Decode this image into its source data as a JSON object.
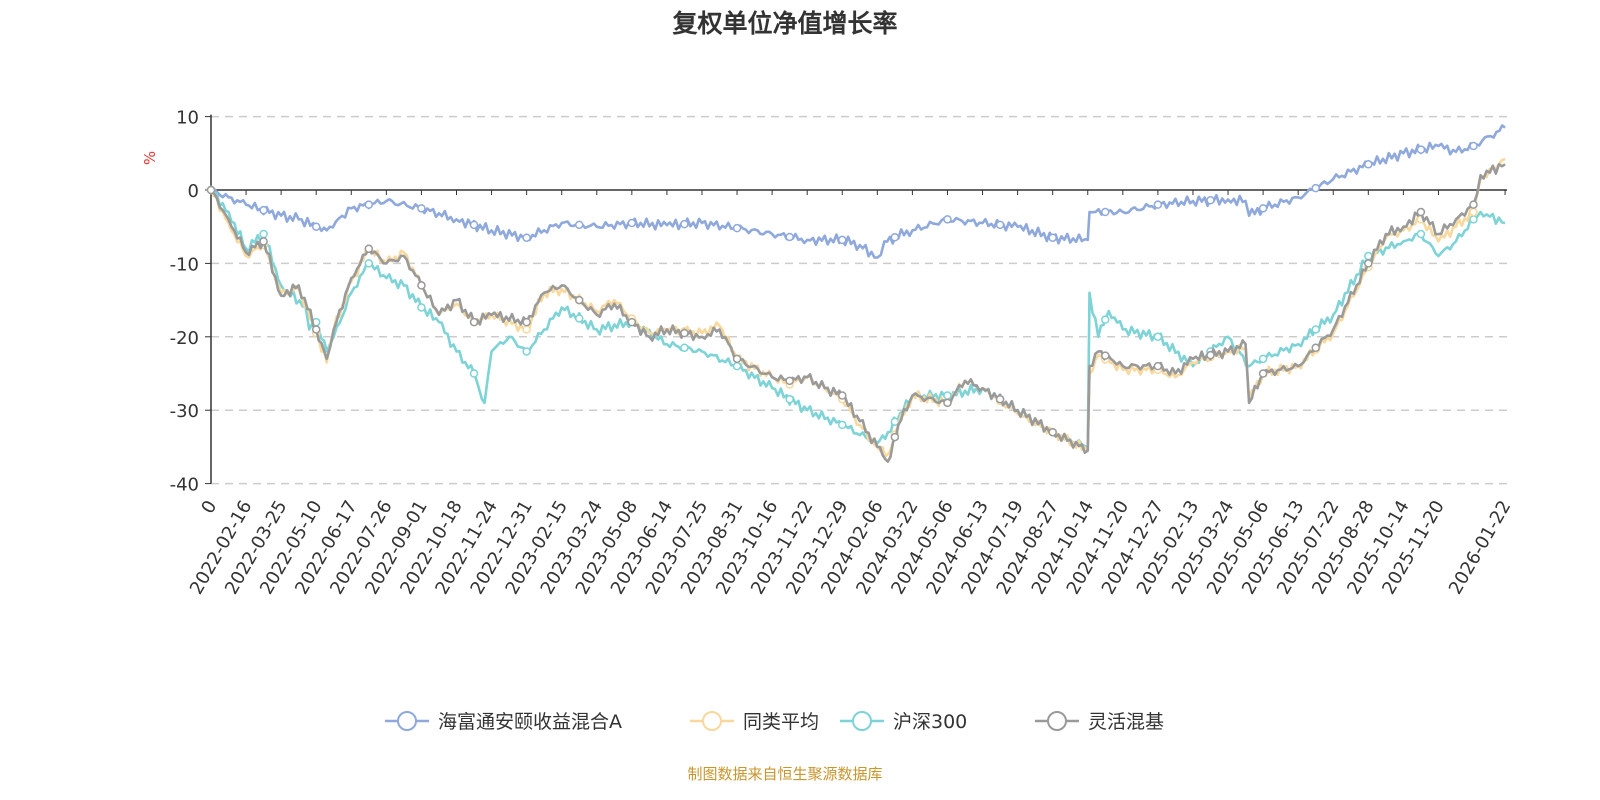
{
  "chart_data": {
    "type": "line",
    "title": "复权单位净值增长率",
    "ylabel": "%",
    "ylim": [
      -40,
      10
    ],
    "yticks": [
      10,
      0,
      -10,
      -20,
      -30,
      -40
    ],
    "grid": true,
    "legend_position": "bottom",
    "categories": [
      "0",
      "2022-02-16",
      "2022-03-25",
      "2022-05-10",
      "2022-06-17",
      "2022-07-26",
      "2022-09-01",
      "2022-10-18",
      "2022-11-24",
      "2022-12-31",
      "2023-02-15",
      "2023-03-24",
      "2023-05-08",
      "2023-06-14",
      "2023-07-25",
      "2023-08-31",
      "2023-10-16",
      "2023-11-22",
      "2023-12-29",
      "2024-02-06",
      "2024-03-22",
      "2024-05-06",
      "2024-06-13",
      "2024-07-19",
      "2024-08-27",
      "2024-10-14",
      "2024-11-20",
      "2024-12-27",
      "2025-02-13",
      "2025-03-24",
      "2025-05-06",
      "2025-06-13",
      "2025-07-22",
      "2025-08-28",
      "2025-10-14",
      "2025-11-20",
      "2026-01-22"
    ],
    "series": [
      {
        "name": "海富通安颐收益混合A",
        "color": "#8fa9dc",
        "x": [
          0,
          0.5,
          1,
          2,
          2.5,
          3,
          3.3,
          4,
          5,
          6,
          7,
          8,
          9,
          10,
          11,
          12,
          13,
          14,
          15,
          16,
          17,
          18,
          18.5,
          19,
          19.2,
          20,
          21,
          22,
          23,
          24,
          25,
          25.05,
          26,
          27,
          28,
          29,
          29.5,
          29.6,
          30,
          31,
          32,
          33,
          34,
          35,
          35.5,
          36,
          36.9
        ],
        "y": [
          0,
          -1,
          -2,
          -3.5,
          -4,
          -5,
          -5.5,
          -2.5,
          -1.5,
          -2.5,
          -4,
          -5.5,
          -6.5,
          -4.5,
          -5,
          -4.5,
          -4.8,
          -4.5,
          -5.2,
          -6,
          -6.8,
          -6.8,
          -7.5,
          -9.2,
          -7,
          -5.5,
          -4,
          -4.5,
          -5,
          -6.5,
          -6.8,
          -3,
          -3,
          -2,
          -1.5,
          -1.3,
          -1.5,
          -3.5,
          -2.5,
          -1,
          1.5,
          3.5,
          5,
          6,
          5.2,
          6,
          8.5
        ]
      },
      {
        "name": "同类平均",
        "color": "#f8d89c",
        "x": [
          0,
          0.5,
          1,
          1.5,
          2,
          2.5,
          3,
          3.3,
          3.5,
          4,
          4.5,
          5,
          5.5,
          6,
          6.5,
          7,
          7.5,
          8,
          9,
          9.5,
          10,
          11,
          11.5,
          12,
          12.5,
          13,
          14,
          14.5,
          15,
          16,
          16.5,
          17,
          17.5,
          18,
          18.5,
          19,
          19.3,
          19.6,
          20,
          21,
          21.5,
          22,
          23,
          24,
          25,
          25.05,
          25.3,
          26,
          27,
          27.5,
          28,
          29,
          29.5,
          29.6,
          30,
          31,
          32,
          33,
          33.5,
          34,
          34.5,
          35,
          35.5,
          36,
          36.2,
          36.9
        ],
        "y": [
          0,
          -4.5,
          -9,
          -7.5,
          -14,
          -13.5,
          -19.5,
          -23.5,
          -19,
          -12.5,
          -8,
          -10,
          -8.5,
          -13,
          -17,
          -15.5,
          -18,
          -17,
          -19,
          -14,
          -13.5,
          -16.5,
          -15,
          -17.5,
          -19.5,
          -19,
          -19.5,
          -18.5,
          -23,
          -25.5,
          -26.5,
          -25.5,
          -27,
          -28.5,
          -32,
          -35,
          -36,
          -32,
          -28,
          -29,
          -26,
          -27,
          -30.5,
          -33,
          -35.5,
          -25,
          -22.5,
          -24.5,
          -24.5,
          -25.5,
          -23.5,
          -22,
          -21.5,
          -28.5,
          -25,
          -24,
          -19.5,
          -10.5,
          -6.5,
          -5.5,
          -4,
          -7,
          -5,
          -3,
          1.5,
          4.2
        ]
      },
      {
        "name": "沪深300",
        "color": "#7dd3d6",
        "x": [
          0,
          0.5,
          1,
          1.5,
          2,
          2.7,
          2.8,
          3,
          3.3,
          3.5,
          4,
          4.5,
          5,
          5.5,
          6,
          6.5,
          7,
          7.5,
          7.8,
          8,
          8.5,
          9,
          10,
          11,
          12,
          13,
          14,
          15,
          16,
          17,
          18,
          19,
          19.3,
          20,
          21,
          22,
          23,
          24,
          25,
          25.05,
          25.3,
          25.6,
          26,
          27,
          28,
          29,
          29.6,
          30,
          31,
          32,
          33,
          34,
          34.5,
          35,
          35.5,
          36,
          36.2,
          36.9
        ],
        "y": [
          0,
          -3,
          -8,
          -6,
          -13,
          -16,
          -19,
          -18,
          -22,
          -20,
          -14,
          -10,
          -12,
          -13,
          -16,
          -18,
          -22,
          -25,
          -29,
          -22,
          -20,
          -22,
          -16,
          -19,
          -18,
          -21,
          -22,
          -24,
          -27,
          -30,
          -32,
          -34.5,
          -33,
          -28,
          -28,
          -27,
          -30,
          -33,
          -35,
          -14,
          -20,
          -16.5,
          -19,
          -20,
          -24,
          -20,
          -24,
          -23,
          -21,
          -17,
          -9,
          -7,
          -6,
          -9,
          -7,
          -4,
          -3,
          -4.5
        ]
      },
      {
        "name": "灵活混基",
        "color": "#9a9a9a",
        "x": [
          0,
          0.5,
          1,
          1.5,
          2,
          2.5,
          3,
          3.3,
          3.5,
          4,
          4.5,
          5,
          5.5,
          6,
          6.5,
          7,
          7.5,
          8,
          9,
          9.5,
          10,
          11,
          11.5,
          12,
          12.5,
          13,
          14,
          14.5,
          15,
          16,
          16.5,
          17,
          17.5,
          18,
          18.5,
          19,
          19.3,
          19.6,
          20,
          21,
          21.5,
          22,
          23,
          24,
          25,
          25.05,
          25.3,
          26,
          27,
          27.5,
          28,
          29,
          29.5,
          29.6,
          30,
          31,
          32,
          33,
          33.5,
          34,
          34.5,
          35,
          35.5,
          36,
          36.2,
          36.9
        ],
        "y": [
          0,
          -4,
          -8.5,
          -7,
          -14.4,
          -13,
          -19,
          -23,
          -19,
          -12,
          -8,
          -10,
          -9,
          -13,
          -17,
          -15,
          -18,
          -17,
          -18,
          -14,
          -13,
          -17,
          -15.5,
          -18,
          -20,
          -19,
          -20,
          -19,
          -23,
          -25.5,
          -26,
          -25.5,
          -27,
          -28,
          -31.5,
          -35,
          -37,
          -32,
          -28,
          -29,
          -26,
          -27,
          -30,
          -33,
          -35.5,
          -24,
          -22,
          -24,
          -24,
          -25,
          -23,
          -22,
          -21,
          -29,
          -25,
          -24,
          -19,
          -10,
          -6,
          -5,
          -3,
          -6,
          -4,
          -2,
          2,
          3.5
        ]
      }
    ],
    "source": "制图数据来自恒生聚源数据库"
  }
}
